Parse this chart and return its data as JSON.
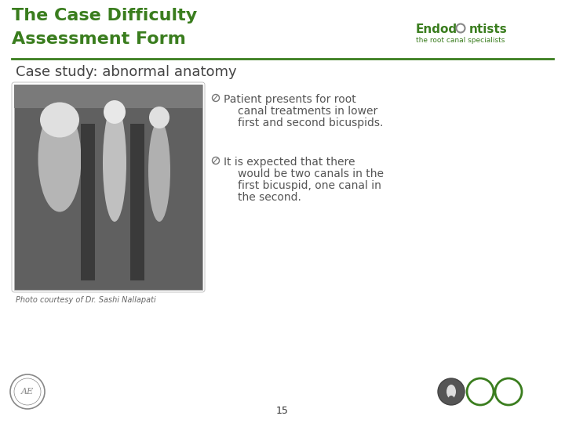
{
  "title_line1": "The Case Difficulty",
  "title_line2": "Assessment Form",
  "title_color": "#3a7d1e",
  "title_fontsize": 16,
  "subtitle": "Case study: abnormal anatomy",
  "subtitle_fontsize": 13,
  "subtitle_color": "#444444",
  "brand_color": "#3a7d1e",
  "brand_sub": "the root canal specialists",
  "divider_color": "#3a7d1e",
  "bullet1_line1": "Patient presents for root",
  "bullet1_line2": "canal treatments in lower",
  "bullet1_line3": "first and second bicuspids.",
  "bullet2_line1": "It is expected that there",
  "bullet2_line2": "would be two canals in the",
  "bullet2_line3": "first bicuspid, one canal in",
  "bullet2_line4": "the second.",
  "bullet_color": "#555555",
  "bullet_fontsize": 10,
  "photo_credit": "Photo courtesy of Dr. Sashi Nallapati",
  "photo_credit_fontsize": 7,
  "page_number": "15",
  "background_color": "#ffffff"
}
